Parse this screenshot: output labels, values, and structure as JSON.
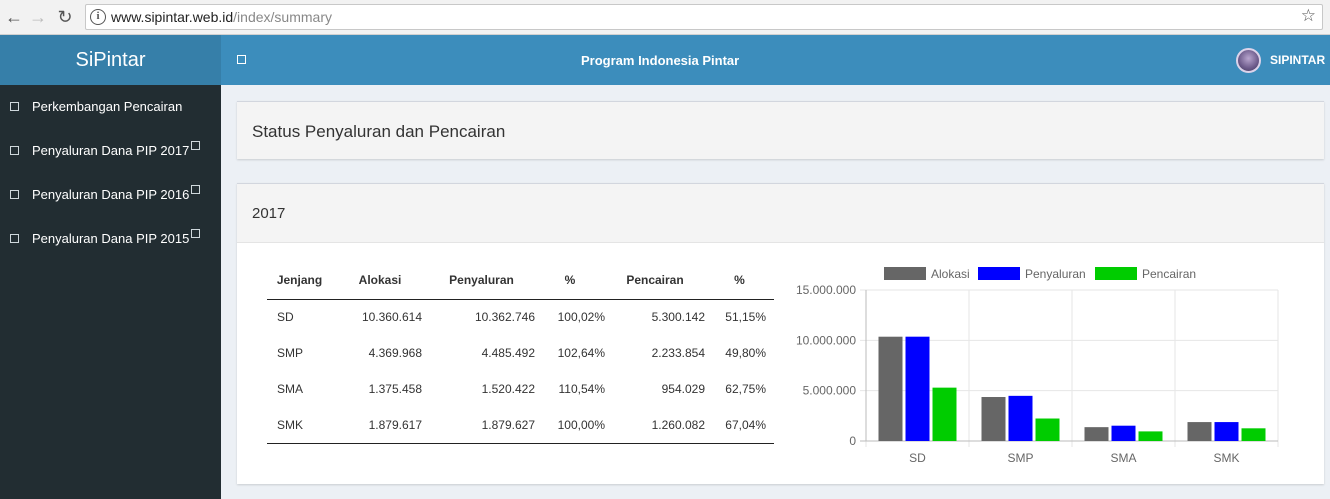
{
  "browser": {
    "url_host": "www.sipintar.web.id",
    "url_path": "/index/summary",
    "icons": {
      "back": "arrow-left-icon",
      "forward": "arrow-right-icon",
      "reload": "reload-icon",
      "info": "info-icon",
      "bookmark": "star-icon"
    }
  },
  "sidebar": {
    "brand": "SiPintar",
    "items": [
      {
        "label": "Perkembangan Pencairan"
      },
      {
        "label": "Penyaluran Dana PIP 2017"
      },
      {
        "label": "Penyaluran Dana PIP 2016"
      },
      {
        "label": "Penyaluran Dana PIP 2015"
      }
    ]
  },
  "header": {
    "title": "Program Indonesia Pintar",
    "user": "SIPINTAR"
  },
  "main": {
    "status_title": "Status Penyaluran dan Pencairan",
    "year": "2017",
    "table": {
      "headers": [
        "Jenjang",
        "Alokasi",
        "Penyaluran",
        "%",
        "Pencairan",
        "%"
      ],
      "rows": [
        [
          "SD",
          "10.360.614",
          "10.362.746",
          "100,02%",
          "5.300.142",
          "51,15%"
        ],
        [
          "SMP",
          "4.369.968",
          "4.485.492",
          "102,64%",
          "2.233.854",
          "49,80%"
        ],
        [
          "SMA",
          "1.375.458",
          "1.520.422",
          "110,54%",
          "954.029",
          "62,75%"
        ],
        [
          "SMK",
          "1.879.617",
          "1.879.627",
          "100,00%",
          "1.260.082",
          "67,04%"
        ]
      ]
    }
  },
  "colors": {
    "brand": "#367fa9",
    "header": "#3c8dbc",
    "sidebar": "#222d32",
    "alokasi": "#666666",
    "penyaluran": "#0000ff",
    "pencairan": "#00cc00"
  },
  "chart_data": {
    "type": "bar",
    "categories": [
      "SD",
      "SMP",
      "SMA",
      "SMK"
    ],
    "series": [
      {
        "name": "Alokasi",
        "values": [
          10360614,
          4369968,
          1375458,
          1879617
        ],
        "color": "#666666"
      },
      {
        "name": "Penyaluran",
        "values": [
          10362746,
          4485492,
          1520422,
          1879627
        ],
        "color": "#0000ff"
      },
      {
        "name": "Pencairan",
        "values": [
          5300142,
          2233854,
          954029,
          1260082
        ],
        "color": "#00cc00"
      }
    ],
    "ylim": [
      0,
      15000000
    ],
    "yticks": [
      "0",
      "5.000.000",
      "10.000.000",
      "15.000.000"
    ],
    "legend": "top",
    "grid": true
  }
}
